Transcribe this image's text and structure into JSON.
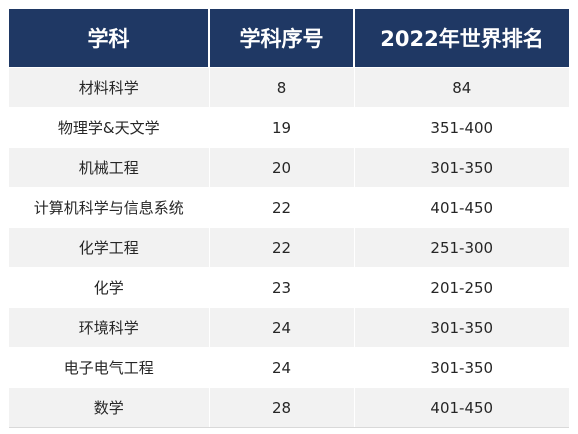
{
  "table": {
    "headers": [
      "学科",
      "学科序号",
      "2022年世界排名"
    ],
    "rows": [
      [
        "材料科学",
        "8",
        "84"
      ],
      [
        "物理学&天文学",
        "19",
        "351-400"
      ],
      [
        "机械工程",
        "20",
        "301-350"
      ],
      [
        "计算机科学与信息系统",
        "22",
        "401-450"
      ],
      [
        "化学工程",
        "22",
        "251-300"
      ],
      [
        "化学",
        "23",
        "201-250"
      ],
      [
        "环境科学",
        "24",
        "301-350"
      ],
      [
        "电子电气工程",
        "24",
        "301-350"
      ],
      [
        "数学",
        "28",
        "401-450"
      ]
    ]
  },
  "colors": {
    "header_bg": "#1f3864",
    "header_text": "#ffffff",
    "stripe": "#f2f2f2"
  }
}
